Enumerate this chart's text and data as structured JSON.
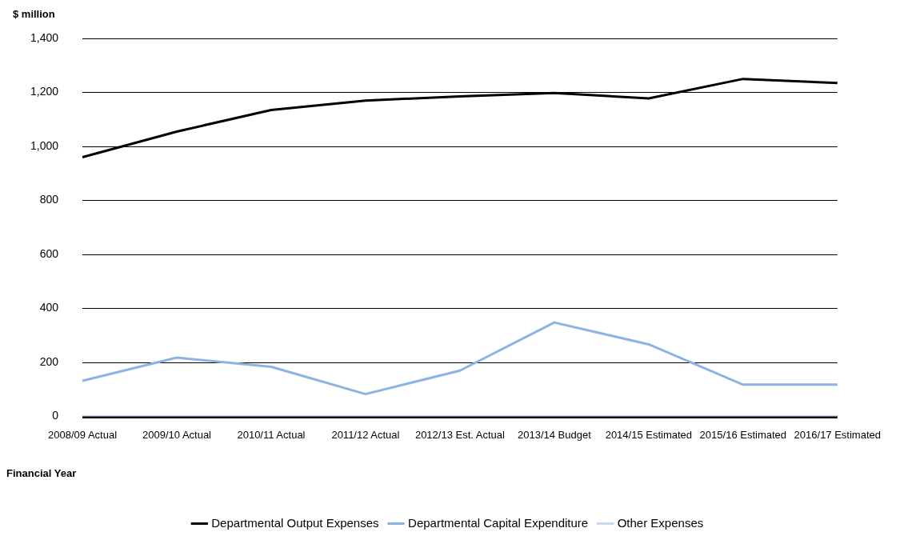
{
  "chart_data": {
    "type": "line",
    "ylabel": "$ million",
    "xlabel": "Financial Year",
    "categories": [
      "2008/09 Actual",
      "2009/10 Actual",
      "2010/11 Actual",
      "2011/12 Actual",
      "2012/13 Est. Actual",
      "2013/14 Budget",
      "2014/15 Estimated",
      "2015/16 Estimated",
      "2016/17 Estimated"
    ],
    "series": [
      {
        "name": "Departmental Output Expenses",
        "color": "#000000",
        "values": [
          960,
          1055,
          1135,
          1170,
          1185,
          1198,
          1178,
          1250,
          1235
        ]
      },
      {
        "name": "Departmental Capital Expenditure",
        "color": "#8db3e2",
        "values": [
          132,
          218,
          184,
          83,
          170,
          348,
          267,
          118,
          118
        ]
      },
      {
        "name": "Other Expenses",
        "color": "#c6d9f1",
        "values": [
          0,
          0,
          0,
          0,
          0,
          0,
          0,
          0,
          0
        ]
      }
    ],
    "ylim": [
      0,
      1400
    ],
    "yticks": [
      {
        "value": 0,
        "label": "0"
      },
      {
        "value": 200,
        "label": "200"
      },
      {
        "value": 400,
        "label": "400"
      },
      {
        "value": 600,
        "label": "600"
      },
      {
        "value": 800,
        "label": "800"
      },
      {
        "value": 1000,
        "label": "1,000"
      },
      {
        "value": 1200,
        "label": "1,200"
      },
      {
        "value": 1400,
        "label": "1,400"
      }
    ],
    "grid": "y",
    "legend": "bottom",
    "marker": "none",
    "line_style": "solid"
  }
}
